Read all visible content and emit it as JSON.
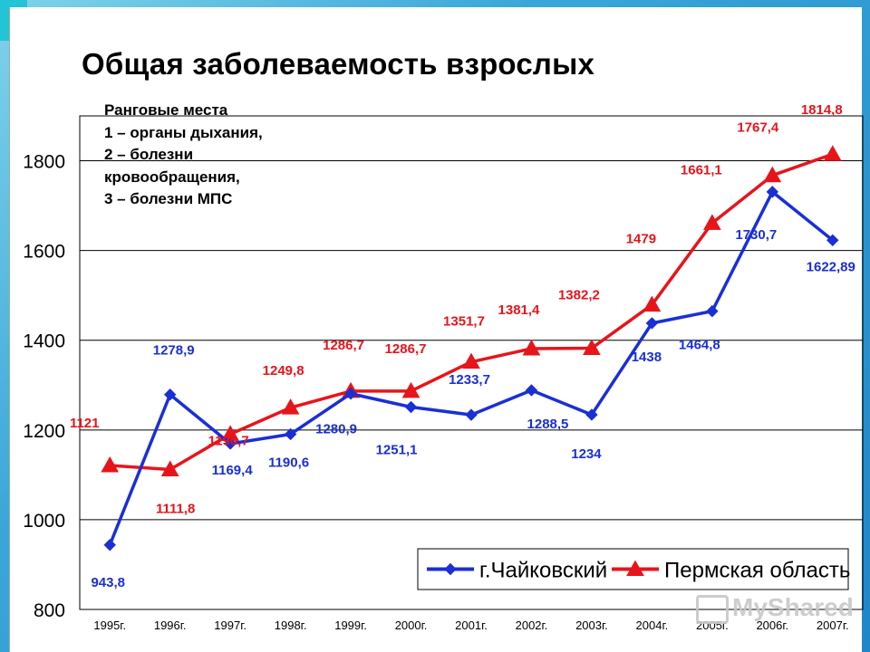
{
  "slide": {
    "title": "Общая заболеваемость взрослых",
    "note_lines": [
      "Ранговые места",
      "1 – органы дыхания,",
      "2 – болезни",
      "кровообращения,",
      "3 – болезни МПС"
    ],
    "watermark": "MyShared"
  },
  "chart_data": {
    "type": "line",
    "categories": [
      "1995г.",
      "1996г.",
      "1997г.",
      "1998г.",
      "1999г.",
      "2000г.",
      "2001г.",
      "2002г.",
      "2003г.",
      "2004г.",
      "2005г.",
      "2006г.",
      "2007г."
    ],
    "ylim": [
      800,
      1900
    ],
    "yticks": [
      800,
      1000,
      1200,
      1400,
      1600,
      1800
    ],
    "grid": true,
    "legend_position": "bottom-right",
    "series": [
      {
        "name": "г.Чайковский",
        "color": "#1a2fd6",
        "marker": "diamond",
        "values": [
          943.8,
          1278.9,
          1169.4,
          1190.6,
          1280.9,
          1251.1,
          1233.7,
          1288.5,
          1234,
          1438,
          1464.8,
          1730.7,
          1622.89
        ],
        "labels": [
          "943,8",
          "1278,9",
          "1169,4",
          "1190,6",
          "1280,9",
          "1251,1",
          "1233,7",
          "1288,5",
          "1234",
          "1438",
          "1464,8",
          "1730,7",
          "1622,89"
        ]
      },
      {
        "name": "Пермская область",
        "color": "#e8141b",
        "marker": "triangle",
        "values": [
          1121,
          1111.8,
          1190.7,
          1249.8,
          1286.7,
          1286.7,
          1351.7,
          1381.4,
          1382.2,
          1479,
          1661.1,
          1767.4,
          1814.8
        ],
        "labels": [
          "1121",
          "1111,8",
          "1190,7",
          "1249,8",
          "1286,7",
          "1286,7",
          "1351,7",
          "1381,4",
          "1382,2",
          "1479",
          "1661,1",
          "1767,4",
          "1814,8"
        ]
      }
    ]
  }
}
